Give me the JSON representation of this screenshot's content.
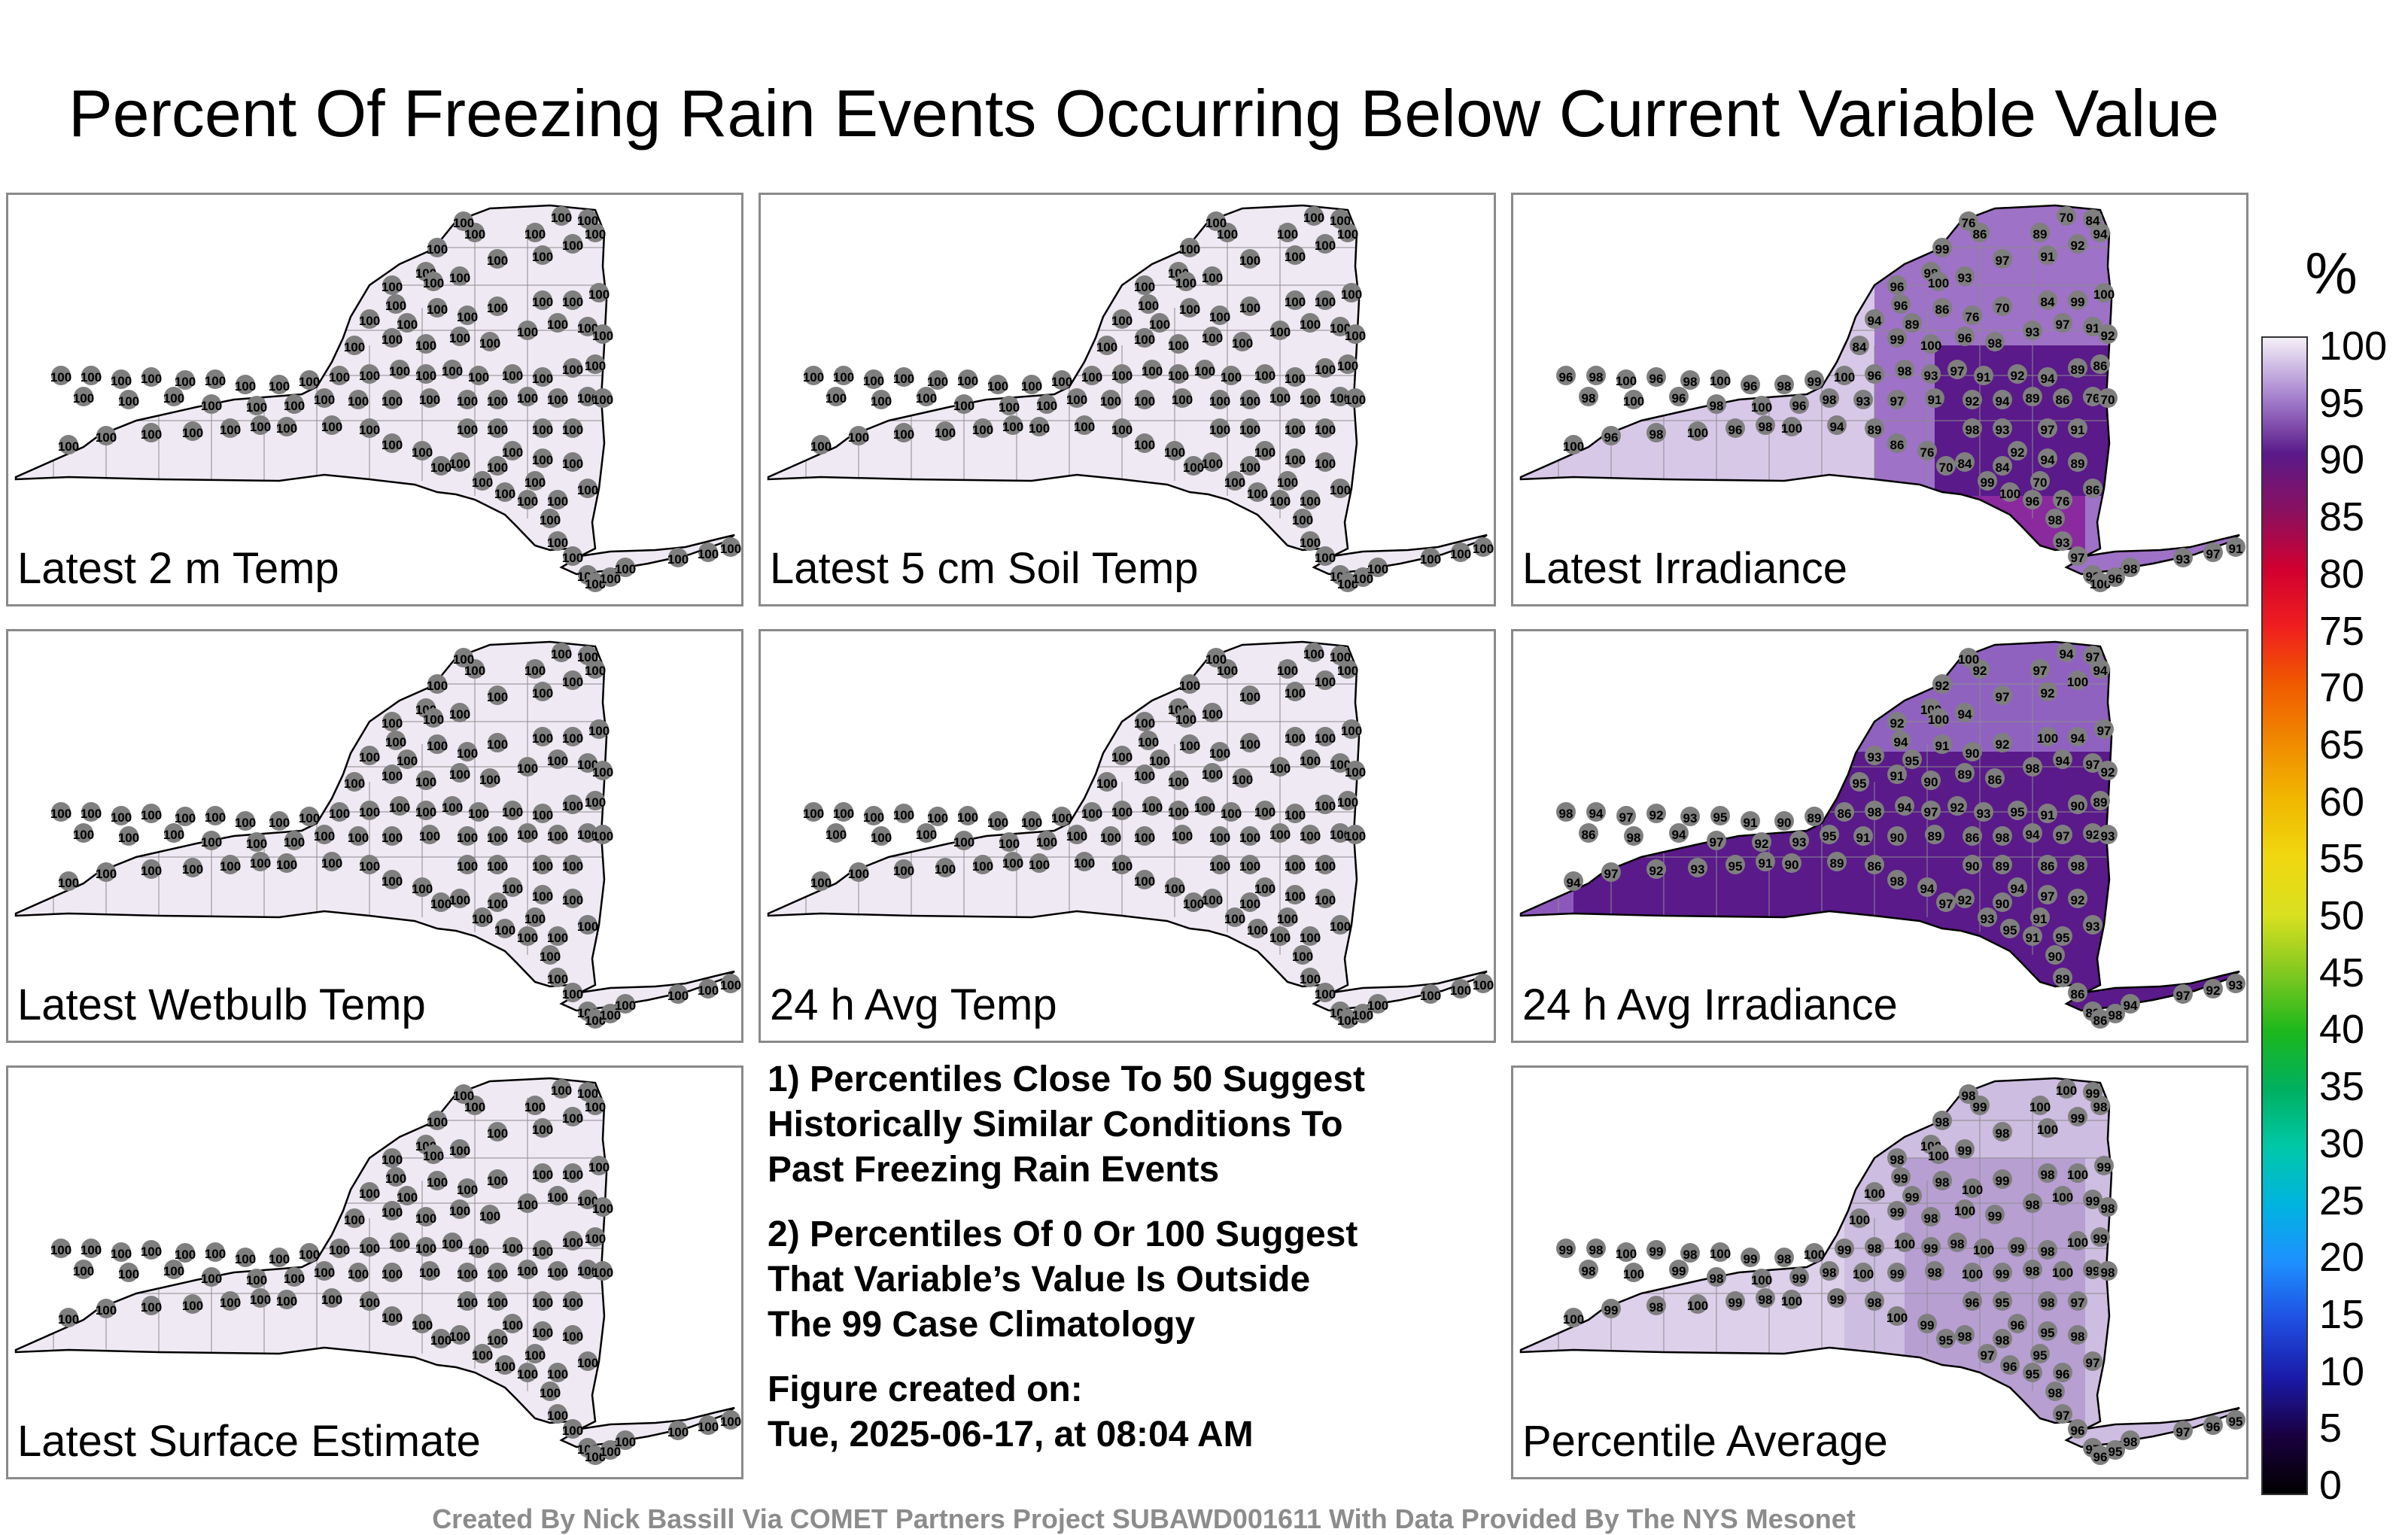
{
  "title": "Percent Of Freezing Rain Events Occurring Below Current Variable Value",
  "colors": {
    "map_fill_high": "#efe9f3",
    "map_fill_mid": "#7a2fa8",
    "map_fill_low": "#d21e3c",
    "station_marker": "#7f7f7f",
    "border": "#000000"
  },
  "panels": [
    {
      "id": "latest-2m-temp",
      "label": "Latest 2 m Temp",
      "pattern": "uniform",
      "values": [
        100
      ]
    },
    {
      "id": "latest-5cm-soil-temp",
      "label": "Latest 5 cm Soil Temp",
      "pattern": "uniform",
      "values": [
        100
      ]
    },
    {
      "id": "latest-irradiance",
      "label": "Latest Irradiance",
      "pattern": "irradiance",
      "values": [
        100,
        96,
        98,
        93,
        97,
        91,
        92,
        94,
        89,
        86,
        76,
        70,
        84,
        99
      ]
    },
    {
      "id": "latest-wetbulb-temp",
      "label": "Latest Wetbulb Temp",
      "pattern": "uniform",
      "values": [
        100
      ]
    },
    {
      "id": "24h-avg-temp",
      "label": "24 h Avg Temp",
      "pattern": "uniform",
      "values": [
        100
      ]
    },
    {
      "id": "24h-avg-irradiance",
      "label": "24 h Avg Irradiance",
      "pattern": "avg-irradiance",
      "values": [
        100,
        94,
        97,
        92,
        93,
        95,
        91,
        90,
        89,
        86,
        98
      ]
    },
    {
      "id": "latest-surface-estimate",
      "label": "Latest Surface Estimate",
      "pattern": "uniform",
      "values": [
        100
      ]
    },
    {
      "id": "percentile-average",
      "label": "Percentile Average",
      "pattern": "average",
      "values": [
        100,
        99,
        98,
        97,
        96,
        95
      ]
    }
  ],
  "notes": [
    "1) Percentiles Close To 50 Suggest\nHistorically Similar Conditions To\nPast Freezing Rain Events",
    "2) Percentiles Of 0 Or 100 Suggest\nThat Variable’s Value Is Outside\nThe 99 Case Climatology",
    "Figure created on:\nTue, 2025-06-17, at 08:04 AM"
  ],
  "colorbar": {
    "unit": "%",
    "min": 0,
    "max": 100,
    "ticks": [
      "100",
      "95",
      "90",
      "85",
      "80",
      "75",
      "70",
      "65",
      "60",
      "55",
      "50",
      "45",
      "40",
      "35",
      "30",
      "25",
      "20",
      "15",
      "10",
      "5",
      "0"
    ]
  },
  "footer": "Created By Nick Bassill Via COMET Partners Project SUBAWD001611 With Data Provided By The NYS Mesonet"
}
